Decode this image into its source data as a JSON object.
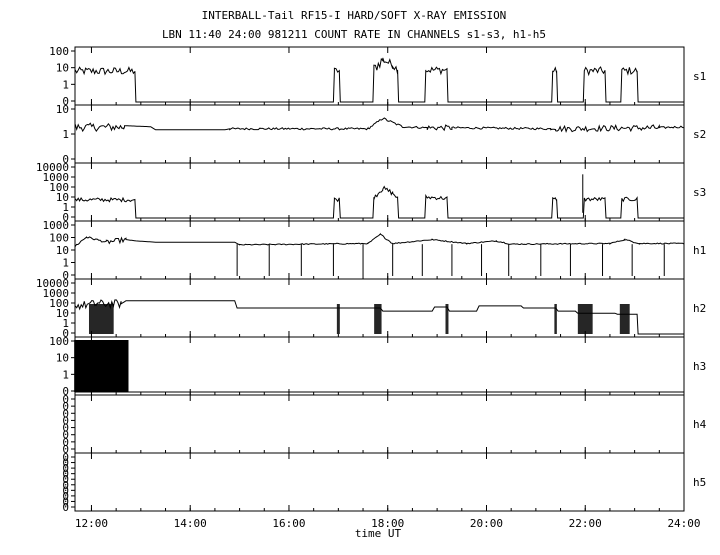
{
  "chart_data": {
    "type": "line",
    "title": "INTERBALL-Tail RF15-I HARD/SOFT X-RAY EMISSION",
    "subtitle": "LBN 11:40 24:00 981211  COUNT RATE IN CHANNELS s1-s3, h1-h5",
    "xlabel": "time UT",
    "xlim": [
      11.6667,
      24.0
    ],
    "x_ticks": [
      {
        "t": 12,
        "label": "12:00"
      },
      {
        "t": 14,
        "label": "14:00"
      },
      {
        "t": 16,
        "label": "16:00"
      },
      {
        "t": 18,
        "label": "18:00"
      },
      {
        "t": 20,
        "label": "20:00"
      },
      {
        "t": 22,
        "label": "22:00"
      },
      {
        "t": 24,
        "label": "24:00"
      }
    ],
    "x_scale": "linear, hours UT",
    "y_scale": "log10",
    "grid": false,
    "line_color": "#000000",
    "panels": [
      {
        "name": "s1",
        "y_ticks": [
          "100",
          "10",
          "1",
          "0"
        ],
        "log_range": [
          -1,
          2
        ],
        "shape": [
          [
            11.67,
            0.78,
            0.9,
            "b",
            0.14
          ],
          [
            12.88,
            0.78,
            0.78,
            "n"
          ],
          [
            12.9,
            -1,
            -1,
            "n"
          ],
          [
            16.9,
            -1,
            -1,
            "n"
          ],
          [
            16.92,
            0.8,
            0.8,
            "b",
            0.12
          ],
          [
            17.02,
            0.8,
            0.8,
            "n"
          ],
          [
            17.04,
            -1,
            -1,
            "n"
          ],
          [
            17.7,
            -1,
            -1,
            "n"
          ],
          [
            17.72,
            0.9,
            0.9,
            "b",
            0.2
          ],
          [
            17.9,
            1.45,
            1.45,
            "b",
            0.15
          ],
          [
            18.1,
            1.15,
            1.15,
            "b",
            0.15
          ],
          [
            18.2,
            0.85,
            0.85,
            "n"
          ],
          [
            18.22,
            -1,
            -1,
            "n"
          ],
          [
            18.75,
            -1,
            -1,
            "n"
          ],
          [
            18.77,
            0.85,
            0.85,
            "b",
            0.14
          ],
          [
            19.2,
            0.85,
            0.85,
            "n"
          ],
          [
            19.22,
            -1,
            -1,
            "n"
          ],
          [
            21.32,
            -1,
            -1,
            "n"
          ],
          [
            21.34,
            0.8,
            0.8,
            "b",
            0.12
          ],
          [
            21.42,
            0.8,
            0.8,
            "n"
          ],
          [
            21.44,
            -1,
            -1,
            "n"
          ],
          [
            21.96,
            -1,
            -1,
            "n"
          ],
          [
            21.98,
            0.8,
            0.8,
            "b",
            0.14
          ],
          [
            22.4,
            0.8,
            0.8,
            "n"
          ],
          [
            22.42,
            -1,
            -1,
            "n"
          ],
          [
            22.72,
            -1,
            -1,
            "n"
          ],
          [
            22.74,
            0.8,
            0.8,
            "b",
            0.14
          ],
          [
            23.05,
            0.8,
            0.8,
            "n"
          ],
          [
            23.07,
            -1,
            -1,
            "n"
          ],
          [
            24.0,
            -1,
            -1,
            "n"
          ]
        ],
        "dips": []
      },
      {
        "name": "s2",
        "y_ticks": [
          "10",
          "1",
          "0"
        ],
        "log_range": [
          -1,
          1.5
        ],
        "shape": [
          [
            11.67,
            0.58,
            0.58,
            "b",
            0.12
          ],
          [
            12.65,
            0.58,
            0.58,
            "b",
            0.12
          ],
          [
            12.67,
            0.65,
            0.65,
            "n"
          ],
          [
            13.2,
            0.6,
            0.6,
            "n"
          ],
          [
            13.3,
            0.45,
            0.45,
            "n"
          ],
          [
            14.7,
            0.45,
            0.45,
            "n"
          ],
          [
            14.8,
            0.5,
            0.5,
            "s",
            0.05
          ],
          [
            17.6,
            0.5,
            0.5,
            "s",
            0.05
          ],
          [
            17.9,
            1.0,
            1.0,
            "s",
            0.06
          ],
          [
            18.3,
            0.6,
            0.6,
            "s",
            0.05
          ],
          [
            18.8,
            0.55,
            0.55,
            "b",
            0.08
          ],
          [
            19.3,
            0.55,
            0.55,
            "s",
            0.05
          ],
          [
            21.3,
            0.5,
            0.5,
            "s",
            0.05
          ],
          [
            21.4,
            0.5,
            0.5,
            "b",
            0.09
          ],
          [
            23.5,
            0.55,
            0.55,
            "s",
            0.05
          ],
          [
            24.0,
            0.6,
            0.6,
            "n"
          ]
        ],
        "dips": []
      },
      {
        "name": "s3",
        "y_ticks": [
          "10000",
          "1000",
          "100",
          "10",
          "1",
          "0"
        ],
        "log_range": [
          -1,
          4
        ],
        "shape": [
          [
            11.67,
            0.75,
            0.9,
            "b",
            0.12
          ],
          [
            12.88,
            0.75,
            0.75,
            "n"
          ],
          [
            12.9,
            -1,
            -1,
            "n"
          ],
          [
            16.9,
            -1,
            -1,
            "n"
          ],
          [
            16.92,
            0.8,
            0.8,
            "b",
            0.12
          ],
          [
            17.02,
            0.8,
            0.8,
            "n"
          ],
          [
            17.04,
            -1,
            -1,
            "n"
          ],
          [
            17.7,
            -1,
            -1,
            "n"
          ],
          [
            17.72,
            1.0,
            1.0,
            "b",
            0.15
          ],
          [
            17.9,
            1.85,
            1.85,
            "b",
            0.15
          ],
          [
            18.1,
            1.4,
            1.4,
            "b",
            0.12
          ],
          [
            18.2,
            0.9,
            0.9,
            "n"
          ],
          [
            18.22,
            -1,
            -1,
            "n"
          ],
          [
            18.75,
            -1,
            -1,
            "n"
          ],
          [
            18.77,
            1.0,
            1.0,
            "b",
            0.12
          ],
          [
            19.2,
            0.9,
            0.9,
            "n"
          ],
          [
            19.22,
            -1,
            -1,
            "n"
          ],
          [
            21.32,
            -1,
            -1,
            "n"
          ],
          [
            21.34,
            0.8,
            0.8,
            "b",
            0.12
          ],
          [
            21.42,
            0.8,
            0.8,
            "n"
          ],
          [
            21.44,
            -1,
            -1,
            "n"
          ],
          [
            21.96,
            -1,
            -1,
            "n"
          ],
          [
            21.98,
            0.8,
            0.8,
            "b",
            0.12
          ],
          [
            22.4,
            0.8,
            0.8,
            "n"
          ],
          [
            22.42,
            -1,
            -1,
            "n"
          ],
          [
            22.72,
            -1,
            -1,
            "n"
          ],
          [
            22.74,
            0.8,
            0.8,
            "b",
            0.12
          ],
          [
            23.05,
            0.8,
            0.8,
            "n"
          ],
          [
            23.07,
            -1,
            -1,
            "n"
          ],
          [
            24.0,
            -1,
            -1,
            "n"
          ]
        ],
        "dips": [
          [
            21.95,
            3.2,
            "spike"
          ]
        ]
      },
      {
        "name": "h1",
        "y_ticks": [
          "1000",
          "100",
          "10",
          "1",
          "0"
        ],
        "log_range": [
          -1,
          3
        ],
        "shape": [
          [
            11.67,
            1.3,
            1.3,
            "s",
            0.1
          ],
          [
            11.9,
            2.0,
            2.0,
            "s",
            0.08
          ],
          [
            12.3,
            1.6,
            1.6,
            "b",
            0.12
          ],
          [
            12.7,
            1.8,
            1.8,
            "n"
          ],
          [
            12.9,
            1.7,
            1.7,
            "n"
          ],
          [
            13.3,
            1.6,
            1.6,
            "n"
          ],
          [
            14.9,
            1.6,
            1.6,
            "n"
          ],
          [
            15.0,
            1.4,
            1.4,
            "s",
            0.04
          ],
          [
            17.6,
            1.5,
            1.5,
            "s",
            0.04
          ],
          [
            17.85,
            2.2,
            2.2,
            "s",
            0.06
          ],
          [
            18.1,
            1.5,
            1.5,
            "s",
            0.04
          ],
          [
            18.9,
            1.8,
            1.8,
            "s",
            0.04
          ],
          [
            19.6,
            1.5,
            1.5,
            "s",
            0.04
          ],
          [
            20.2,
            1.7,
            1.7,
            "s",
            0.05
          ],
          [
            20.5,
            1.45,
            1.45,
            "s",
            0.04
          ],
          [
            22.5,
            1.5,
            1.5,
            "s",
            0.04
          ],
          [
            22.8,
            1.8,
            1.8,
            "s",
            0.05
          ],
          [
            23.1,
            1.5,
            1.5,
            "s",
            0.04
          ],
          [
            24.0,
            1.5,
            1.5,
            "n"
          ]
        ],
        "dips": [
          [
            14.95,
            -1
          ],
          [
            15.6,
            -1
          ],
          [
            16.25,
            -1
          ],
          [
            16.9,
            -1
          ],
          [
            17.5,
            -1
          ],
          [
            18.1,
            -1
          ],
          [
            18.7,
            -1
          ],
          [
            19.3,
            -1
          ],
          [
            19.9,
            -1
          ],
          [
            20.45,
            -1
          ],
          [
            21.1,
            -1
          ],
          [
            21.7,
            -1
          ],
          [
            22.35,
            -1
          ],
          [
            22.95,
            -1
          ],
          [
            23.6,
            -1
          ]
        ]
      },
      {
        "name": "h2",
        "y_ticks": [
          "10000",
          "1000",
          "100",
          "10",
          "1",
          "0"
        ],
        "log_range": [
          -1,
          4
        ],
        "shape": [
          [
            11.67,
            1.7,
            1.7,
            "b",
            0.25
          ],
          [
            12.1,
            1.9,
            1.9,
            "b",
            0.25
          ],
          [
            12.6,
            1.9,
            1.9,
            "n"
          ],
          [
            12.7,
            2.2,
            2.2,
            "n"
          ],
          [
            14.9,
            2.2,
            2.2,
            "n"
          ],
          [
            14.95,
            1.5,
            1.5,
            "n"
          ],
          [
            17.85,
            1.5,
            1.5,
            "n"
          ],
          [
            17.9,
            1.2,
            1.2,
            "n"
          ],
          [
            18.9,
            1.2,
            1.2,
            "n"
          ],
          [
            18.95,
            1.6,
            1.6,
            "n"
          ],
          [
            19.2,
            1.6,
            1.6,
            "n"
          ],
          [
            19.25,
            1.2,
            1.2,
            "n"
          ],
          [
            19.8,
            1.2,
            1.2,
            "n"
          ],
          [
            19.85,
            1.7,
            1.7,
            "n"
          ],
          [
            20.7,
            1.7,
            1.7,
            "n"
          ],
          [
            20.75,
            1.5,
            1.5,
            "n"
          ],
          [
            21.4,
            1.5,
            1.5,
            "n"
          ],
          [
            21.45,
            1.2,
            1.2,
            "n"
          ],
          [
            21.8,
            1.2,
            1.2,
            "n"
          ],
          [
            21.85,
            1.0,
            1.0,
            "n"
          ],
          [
            22.6,
            1.0,
            1.0,
            "n"
          ],
          [
            22.65,
            0.9,
            0.9,
            "n"
          ],
          [
            23.05,
            0.9,
            0.9,
            "n"
          ],
          [
            23.07,
            -1,
            -1,
            "n"
          ],
          [
            24.0,
            -1,
            -1,
            "n"
          ]
        ],
        "dips": [
          [
            17.0,
            -1,
            "band",
            0.06
          ],
          [
            17.8,
            -1,
            "band",
            0.15
          ],
          [
            19.2,
            -1,
            "band",
            0.06
          ],
          [
            21.4,
            -1,
            "band",
            0.05
          ],
          [
            22.0,
            -1,
            "band",
            0.3
          ],
          [
            22.8,
            -1,
            "band",
            0.2
          ],
          [
            12.2,
            -1,
            "band",
            0.5
          ]
        ]
      },
      {
        "name": "h3",
        "y_ticks": [
          "100",
          "10",
          "1",
          "0"
        ],
        "log_range": [
          -1,
          2
        ],
        "shape": [
          [
            11.67,
            -1,
            -1,
            "n"
          ],
          [
            24.0,
            -1,
            -1,
            "n"
          ]
        ],
        "dips": [
          [
            12.2,
            2.0,
            "block",
            1.1
          ]
        ]
      },
      {
        "name": "h4",
        "y_ticks": [
          "0",
          "0",
          "0",
          "0",
          "0",
          "0",
          "0",
          "0"
        ],
        "log_range": [
          -1,
          1
        ],
        "shape": [],
        "dips": []
      },
      {
        "name": "h5",
        "y_ticks": [
          "0",
          "0",
          "0",
          "0",
          "0",
          "0",
          "0",
          "0",
          "0",
          "0"
        ],
        "log_range": [
          -1,
          1
        ],
        "shape": [],
        "dips": []
      }
    ]
  }
}
